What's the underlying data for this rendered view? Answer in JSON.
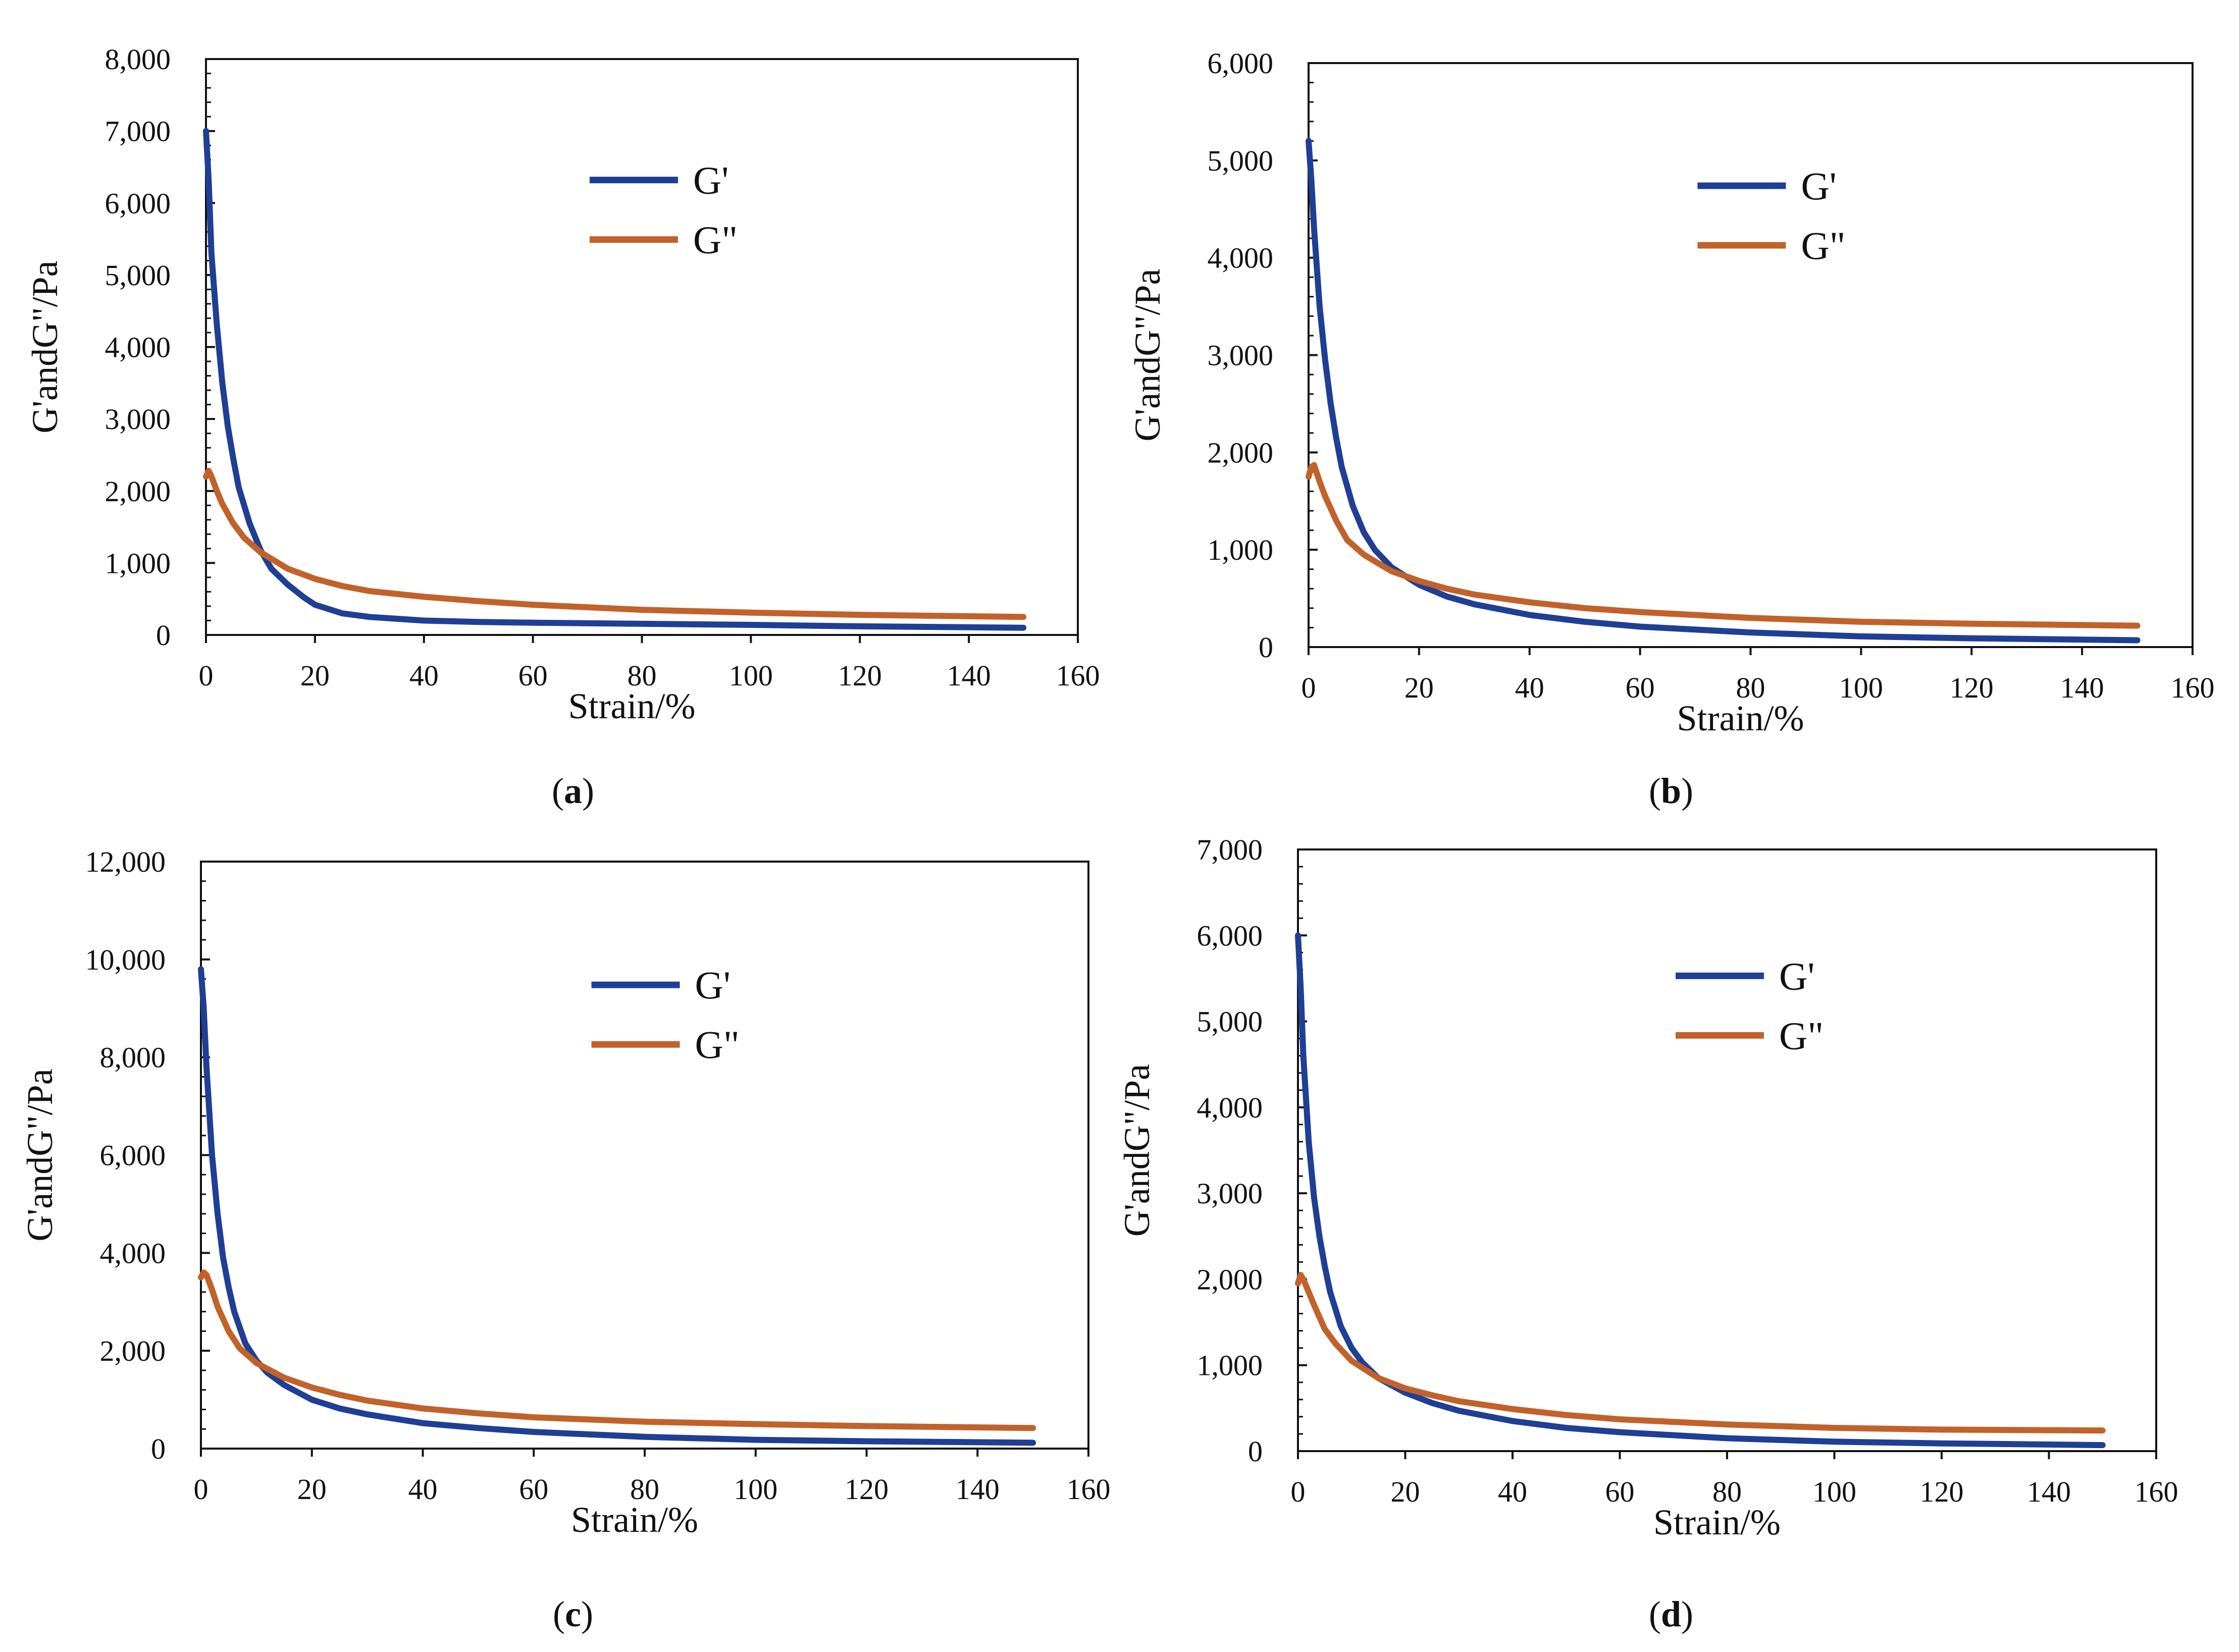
{
  "figure": {
    "background": "#ffffff",
    "series_colors": {
      "G'": "#1f3f95",
      "G\"": "#c1622b"
    }
  },
  "chart_data": [
    {
      "panel": "a",
      "caption_open": "(",
      "caption_letter": "a",
      "caption_close": ")",
      "type": "line",
      "xlabel": "Strain/%",
      "ylabel": "G'andG\"/Pa",
      "xlim": [
        0,
        160
      ],
      "ylim": [
        0,
        8000
      ],
      "xticks": [
        0,
        20,
        40,
        60,
        80,
        100,
        120,
        140,
        160
      ],
      "yticks": [
        0,
        1000,
        2000,
        3000,
        4000,
        5000,
        6000,
        7000,
        8000
      ],
      "ytick_labels": [
        "0",
        "1,000",
        "2,000",
        "3,000",
        "4,000",
        "5,000",
        "6,000",
        "7,000",
        "8,000"
      ],
      "legend": [
        "G'",
        "G\""
      ],
      "series": [
        {
          "name": "G'",
          "color": "#1f3f95",
          "x": [
            0,
            0.5,
            1,
            2,
            3,
            4,
            5,
            6,
            8,
            10,
            12,
            15,
            18,
            20,
            25,
            30,
            40,
            50,
            60,
            80,
            100,
            120,
            150
          ],
          "y": [
            7000,
            6300,
            5300,
            4300,
            3500,
            2900,
            2450,
            2050,
            1550,
            1180,
            920,
            700,
            520,
            420,
            300,
            250,
            200,
            180,
            170,
            155,
            140,
            120,
            100
          ]
        },
        {
          "name": "G\"",
          "color": "#c1622b",
          "x": [
            0,
            0.5,
            1,
            2,
            3,
            5,
            7,
            10,
            15,
            20,
            25,
            30,
            40,
            50,
            60,
            80,
            100,
            120,
            150
          ],
          "y": [
            2200,
            2280,
            2200,
            2000,
            1820,
            1550,
            1350,
            1150,
            920,
            780,
            680,
            610,
            530,
            470,
            420,
            350,
            310,
            280,
            250
          ]
        }
      ]
    },
    {
      "panel": "b",
      "caption_open": "(",
      "caption_letter": "b",
      "caption_close": ")",
      "type": "line",
      "xlabel": "Strain/%",
      "ylabel": "G'andG\"/Pa",
      "xlim": [
        0,
        160
      ],
      "ylim": [
        0,
        6000
      ],
      "xticks": [
        0,
        20,
        40,
        60,
        80,
        100,
        120,
        140,
        160
      ],
      "yticks": [
        0,
        1000,
        2000,
        3000,
        4000,
        5000,
        6000
      ],
      "ytick_labels": [
        "0",
        "1,000",
        "2,000",
        "3,000",
        "4,000",
        "5,000",
        "6,000"
      ],
      "legend": [
        "G'",
        "G\""
      ],
      "series": [
        {
          "name": "G'",
          "color": "#1f3f95",
          "x": [
            0,
            0.5,
            1,
            2,
            3,
            4,
            5,
            6,
            8,
            10,
            12,
            15,
            20,
            25,
            30,
            40,
            50,
            60,
            80,
            100,
            120,
            150
          ],
          "y": [
            5200,
            4800,
            4300,
            3500,
            2950,
            2500,
            2150,
            1850,
            1450,
            1180,
            1000,
            820,
            640,
            520,
            440,
            330,
            260,
            210,
            150,
            110,
            90,
            70
          ]
        },
        {
          "name": "G\"",
          "color": "#c1622b",
          "x": [
            0,
            0.5,
            1,
            2,
            3,
            5,
            7,
            10,
            15,
            20,
            25,
            30,
            40,
            50,
            60,
            80,
            100,
            120,
            150
          ],
          "y": [
            1750,
            1850,
            1870,
            1700,
            1550,
            1300,
            1100,
            950,
            780,
            680,
            600,
            540,
            460,
            400,
            360,
            300,
            260,
            240,
            220
          ]
        }
      ]
    },
    {
      "panel": "c",
      "caption_open": "(",
      "caption_letter": "c",
      "caption_close": ")",
      "type": "line",
      "xlabel": "Strain/%",
      "ylabel": "G'andG\"/Pa",
      "xlim": [
        0,
        160
      ],
      "ylim": [
        0,
        12000
      ],
      "xticks": [
        0,
        20,
        40,
        60,
        80,
        100,
        120,
        140,
        160
      ],
      "yticks": [
        0,
        2000,
        4000,
        6000,
        8000,
        10000,
        12000
      ],
      "ytick_labels": [
        "0",
        "2,000",
        "4,000",
        "6,000",
        "8,000",
        "10,000",
        "12,000"
      ],
      "legend": [
        "G'",
        "G\""
      ],
      "series": [
        {
          "name": "G'",
          "color": "#1f3f95",
          "x": [
            0,
            0.5,
            1,
            2,
            3,
            4,
            5,
            6,
            8,
            10,
            12,
            15,
            20,
            25,
            30,
            40,
            50,
            60,
            80,
            100,
            120,
            150
          ],
          "y": [
            9800,
            9000,
            7800,
            6000,
            4800,
            3900,
            3300,
            2800,
            2150,
            1800,
            1550,
            1300,
            1000,
            820,
            700,
            520,
            420,
            340,
            240,
            180,
            150,
            120
          ]
        },
        {
          "name": "G\"",
          "color": "#c1622b",
          "x": [
            0,
            0.5,
            1,
            2,
            3,
            5,
            7,
            10,
            15,
            20,
            25,
            30,
            40,
            50,
            60,
            80,
            100,
            120,
            150
          ],
          "y": [
            3500,
            3600,
            3550,
            3250,
            2900,
            2400,
            2050,
            1750,
            1450,
            1250,
            1100,
            980,
            820,
            720,
            640,
            550,
            500,
            460,
            420
          ]
        }
      ]
    },
    {
      "panel": "d",
      "caption_open": "(",
      "caption_letter": "d",
      "caption_close": ")",
      "type": "line",
      "xlabel": "Strain/%",
      "ylabel": "G'andG\"/Pa",
      "xlim": [
        0,
        160
      ],
      "ylim": [
        0,
        7000
      ],
      "xticks": [
        0,
        20,
        40,
        60,
        80,
        100,
        120,
        140,
        160
      ],
      "yticks": [
        0,
        1000,
        2000,
        3000,
        4000,
        5000,
        6000,
        7000
      ],
      "ytick_labels": [
        "0",
        "1,000",
        "2,000",
        "3,000",
        "4,000",
        "5,000",
        "6,000",
        "7,000"
      ],
      "legend": [
        "G'",
        "G\""
      ],
      "series": [
        {
          "name": "G'",
          "color": "#1f3f95",
          "x": [
            0,
            0.5,
            1,
            2,
            3,
            4,
            5,
            6,
            8,
            10,
            12,
            15,
            20,
            25,
            30,
            40,
            50,
            60,
            80,
            100,
            120,
            150
          ],
          "y": [
            6000,
            5400,
            4600,
            3600,
            2950,
            2500,
            2150,
            1850,
            1450,
            1200,
            1030,
            850,
            680,
            560,
            470,
            350,
            270,
            220,
            150,
            110,
            90,
            70
          ]
        },
        {
          "name": "G\"",
          "color": "#c1622b",
          "x": [
            0,
            0.5,
            1,
            2,
            3,
            5,
            7,
            10,
            15,
            20,
            25,
            30,
            40,
            50,
            60,
            80,
            100,
            120,
            150
          ],
          "y": [
            1950,
            2050,
            2000,
            1850,
            1700,
            1420,
            1250,
            1050,
            850,
            730,
            650,
            580,
            490,
            420,
            370,
            310,
            270,
            250,
            240
          ]
        }
      ]
    }
  ]
}
